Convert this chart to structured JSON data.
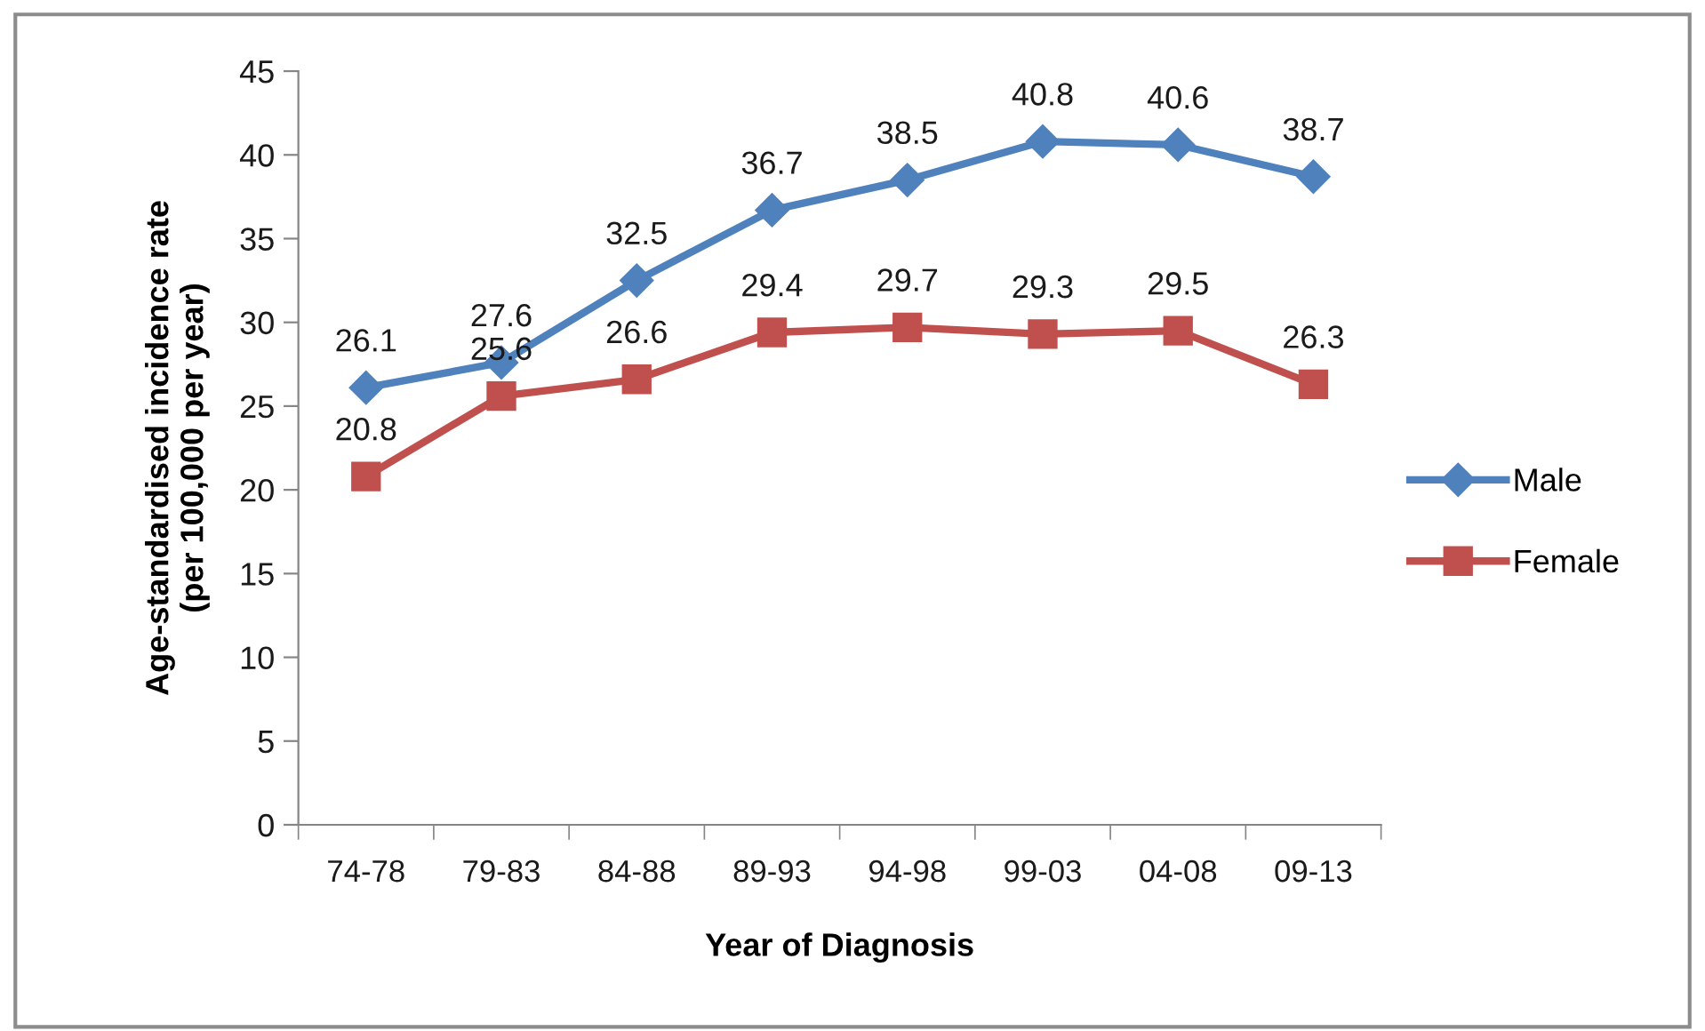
{
  "chart_data": {
    "type": "line",
    "xlabel": "Year of Diagnosis",
    "ylabel": "Age-standardised incidence rate\n(per 100,000 per year)",
    "categories": [
      "74-78",
      "79-83",
      "84-88",
      "89-93",
      "94-98",
      "99-03",
      "04-08",
      "09-13"
    ],
    "series": [
      {
        "name": "Male",
        "color": "#4f81bd",
        "marker": "diamond",
        "values": [
          26.1,
          27.6,
          32.5,
          36.7,
          38.5,
          40.8,
          40.6,
          38.7
        ]
      },
      {
        "name": "Female",
        "color": "#c0504d",
        "marker": "square",
        "values": [
          20.8,
          25.6,
          26.6,
          29.4,
          29.7,
          29.3,
          29.5,
          26.3
        ]
      }
    ],
    "ylim": [
      0,
      45
    ],
    "yticks": [
      0,
      5,
      10,
      15,
      20,
      25,
      30,
      35,
      40,
      45
    ],
    "data_labels": true,
    "legend": "right",
    "grid": false,
    "line_style": "solid"
  }
}
